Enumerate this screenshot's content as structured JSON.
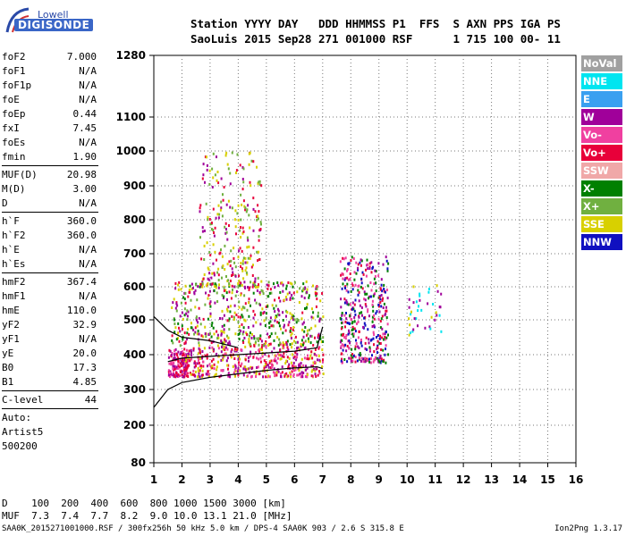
{
  "logo": {
    "line1": "Lowell",
    "line2": "DIGISONDE"
  },
  "header": {
    "line1": "Station YYYY DAY   DDD HHMMSS P1  FFS  S AXN PPS IGA PS",
    "line2": "SaoLuis 2015 Sep28 271 001000 RSF      1 715 100 00- 11"
  },
  "params_a": [
    {
      "k": "foF2",
      "v": "7.000"
    },
    {
      "k": "foF1",
      "v": "N/A"
    },
    {
      "k": "foF1p",
      "v": "N/A"
    },
    {
      "k": "foE",
      "v": "N/A"
    },
    {
      "k": "foEp",
      "v": "0.44"
    },
    {
      "k": "fxI",
      "v": "7.45"
    },
    {
      "k": "foEs",
      "v": "N/A"
    },
    {
      "k": "fmin",
      "v": "1.90"
    }
  ],
  "params_b": [
    {
      "k": "MUF(D)",
      "v": "20.98"
    },
    {
      "k": "M(D)",
      "v": "3.00"
    },
    {
      "k": "D",
      "v": "N/A"
    }
  ],
  "params_c": [
    {
      "k": "h`F",
      "v": "360.0"
    },
    {
      "k": "h`F2",
      "v": "360.0"
    },
    {
      "k": "h`E",
      "v": "N/A"
    },
    {
      "k": "h`Es",
      "v": "N/A"
    }
  ],
  "params_d": [
    {
      "k": "hmF2",
      "v": "367.4"
    },
    {
      "k": "hmF1",
      "v": "N/A"
    },
    {
      "k": "hmE",
      "v": "110.0"
    },
    {
      "k": "yF2",
      "v": "32.9"
    },
    {
      "k": "yF1",
      "v": "N/A"
    },
    {
      "k": "yE",
      "v": "20.0"
    },
    {
      "k": "B0",
      "v": "17.3"
    },
    {
      "k": "B1",
      "v": "4.85"
    }
  ],
  "params_e": [
    {
      "k": "C-level",
      "v": "44"
    }
  ],
  "auto": {
    "l1": "Auto:",
    "l2": "Artist5",
    "l3": "500200"
  },
  "legend": [
    {
      "label": "NoVal",
      "color": "#a0a0a0"
    },
    {
      "label": "NNE",
      "color": "#00e5f0"
    },
    {
      "label": "E",
      "color": "#3aa0f0"
    },
    {
      "label": "W",
      "color": "#a0009a"
    },
    {
      "label": "Vo-",
      "color": "#f040a0"
    },
    {
      "label": "Vo+",
      "color": "#e8003a"
    },
    {
      "label": "SSW",
      "color": "#f0a8a8"
    },
    {
      "label": "X-",
      "color": "#008000"
    },
    {
      "label": "X+",
      "color": "#70b040"
    },
    {
      "label": "SSE",
      "color": "#d8d000"
    },
    {
      "label": "NNW",
      "color": "#1010c0"
    }
  ],
  "dmuf": {
    "d_line": "D    100  200  400  600  800 1000 1500 3000 [km]",
    "muf_line": "MUF  7.3  7.4  7.7  8.2  9.0 10.0 13.1 21.0 [MHz]"
  },
  "footer": "SAA0K_2015271001000.RSF / 300fx256h 50 kHz 5.0 km / DPS-4 SAA0K 903 / 2.6 S 315.8 E",
  "version": "Ion2Png 1.3.17",
  "chart_data": {
    "type": "scatter",
    "title": "",
    "xlabel": "",
    "ylabel": "",
    "xlim": [
      1,
      16
    ],
    "ylim": [
      80,
      1280
    ],
    "x_ticks": [
      1,
      2,
      3,
      4,
      5,
      6,
      7,
      8,
      9,
      10,
      11,
      12,
      13,
      14,
      15,
      16
    ],
    "y_ticks": [
      80,
      200,
      300,
      400,
      500,
      600,
      700,
      800,
      900,
      1000,
      1100,
      1280
    ],
    "grid": true,
    "clusters": [
      {
        "x": [
          1.5,
          2.2
        ],
        "y": [
          340,
          420
        ],
        "n": 160,
        "colors": [
          "#a0009a",
          "#e8003a",
          "#f040a0"
        ]
      },
      {
        "x": [
          2.0,
          7.0
        ],
        "y": [
          340,
          430
        ],
        "n": 420,
        "colors": [
          "#a0009a",
          "#e8003a",
          "#f040a0",
          "#d8d000"
        ]
      },
      {
        "x": [
          1.6,
          7.0
        ],
        "y": [
          430,
          620
        ],
        "n": 520,
        "colors": [
          "#d8d000",
          "#70b040",
          "#008000",
          "#e8003a",
          "#a0009a"
        ]
      },
      {
        "x": [
          2.6,
          4.8
        ],
        "y": [
          600,
          1000
        ],
        "n": 260,
        "colors": [
          "#d8d000",
          "#a0009a",
          "#e8003a",
          "#70b040"
        ]
      },
      {
        "x": [
          7.6,
          9.3
        ],
        "y": [
          380,
          700
        ],
        "n": 380,
        "colors": [
          "#e8003a",
          "#a0009a",
          "#f040a0",
          "#1010c0",
          "#008000"
        ]
      },
      {
        "x": [
          10.0,
          11.2
        ],
        "y": [
          460,
          620
        ],
        "n": 40,
        "colors": [
          "#a0009a",
          "#d8d000",
          "#00e5f0"
        ]
      }
    ],
    "trace_curves": [
      {
        "x": [
          1.0,
          1.5,
          2.0,
          3.0,
          4.0,
          5.0,
          6.0,
          6.8,
          7.0
        ],
        "y": [
          250,
          300,
          320,
          335,
          345,
          355,
          362,
          365,
          360
        ]
      },
      {
        "x": [
          1.5,
          2.0,
          3.0,
          4.0,
          5.0,
          6.0,
          6.8,
          7.0
        ],
        "y": [
          380,
          390,
          395,
          400,
          405,
          410,
          420,
          480
        ]
      },
      {
        "x": [
          1.0,
          1.5,
          2.0,
          3.0,
          3.5,
          4.0
        ],
        "y": [
          510,
          470,
          450,
          440,
          430,
          420
        ]
      }
    ]
  }
}
